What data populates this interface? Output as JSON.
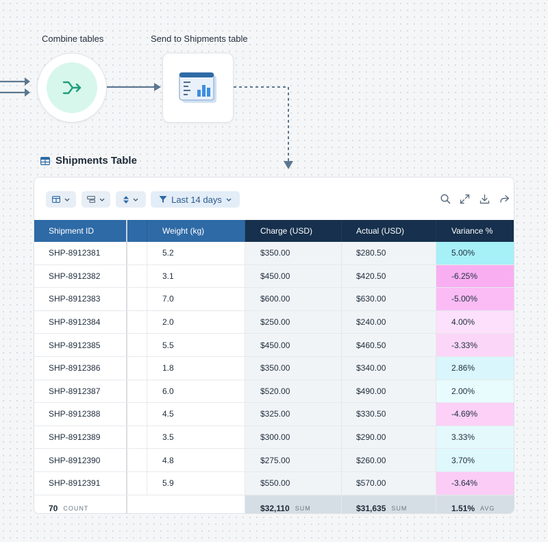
{
  "flow": {
    "combine_label": "Combine tables",
    "send_label": "Send to Shipments table"
  },
  "section": {
    "title": "Shipments Table"
  },
  "toolbar": {
    "filter_label": "Last 14 days",
    "icons": [
      "table-view-icon",
      "group-icon",
      "sort-icon",
      "filter-icon",
      "search-icon",
      "expand-icon",
      "download-icon",
      "share-icon"
    ]
  },
  "table": {
    "headers": [
      "Shipment ID",
      "Weight (kg)",
      "Charge (USD)",
      "Actual (USD)",
      "Variance %"
    ],
    "rows": [
      {
        "id": "SHP-8912381",
        "weight": "5.2",
        "charge": "$350.00",
        "actual": "$280.50",
        "variance": "5.00%",
        "heat": "#a6f0f8"
      },
      {
        "id": "SHP-8912382",
        "weight": "3.1",
        "charge": "$450.00",
        "actual": "$420.50",
        "variance": "-6.25%",
        "heat": "#f9aef2"
      },
      {
        "id": "SHP-8912383",
        "weight": "7.0",
        "charge": "$600.00",
        "actual": "$630.00",
        "variance": "-5.00%",
        "heat": "#fbbcf5"
      },
      {
        "id": "SHP-8912384",
        "weight": "2.0",
        "charge": "$250.00",
        "actual": "$240.00",
        "variance": "4.00%",
        "heat": "#fde0fb"
      },
      {
        "id": "SHP-8912385",
        "weight": "5.5",
        "charge": "$450.00",
        "actual": "$460.50",
        "variance": "-3.33%",
        "heat": "#fcd6f8"
      },
      {
        "id": "SHP-8912386",
        "weight": "1.8",
        "charge": "$350.00",
        "actual": "$340.00",
        "variance": "2.86%",
        "heat": "#d8f6fb"
      },
      {
        "id": "SHP-8912387",
        "weight": "6.0",
        "charge": "$520.00",
        "actual": "$490.00",
        "variance": "2.00%",
        "heat": "#e8fbfd"
      },
      {
        "id": "SHP-8912388",
        "weight": "4.5",
        "charge": "$325.00",
        "actual": "$330.50",
        "variance": "-4.69%",
        "heat": "#fcd0f7"
      },
      {
        "id": "SHP-8912389",
        "weight": "3.5",
        "charge": "$300.00",
        "actual": "$290.00",
        "variance": "3.33%",
        "heat": "#e4f9fc"
      },
      {
        "id": "SHP-8912390",
        "weight": "4.8",
        "charge": "$275.00",
        "actual": "$260.00",
        "variance": "3.70%",
        "heat": "#dff8fc"
      },
      {
        "id": "SHP-8912391",
        "weight": "5.9",
        "charge": "$550.00",
        "actual": "$570.00",
        "variance": "-3.64%",
        "heat": "#fbccf6"
      }
    ],
    "footer": {
      "count_value": "70",
      "count_label": "COUNT",
      "charge_value": "$32,110",
      "charge_label": "SUM",
      "actual_value": "$31,635",
      "actual_label": "SUM",
      "variance_value": "1.51%",
      "variance_label": "AVG"
    }
  },
  "colors": {
    "header_light": "#2e6aa6",
    "header_dark": "#16304d",
    "accent_green": "#1f9d7a",
    "positive_heat": "#a6f0f8",
    "negative_heat": "#f9aef2"
  }
}
